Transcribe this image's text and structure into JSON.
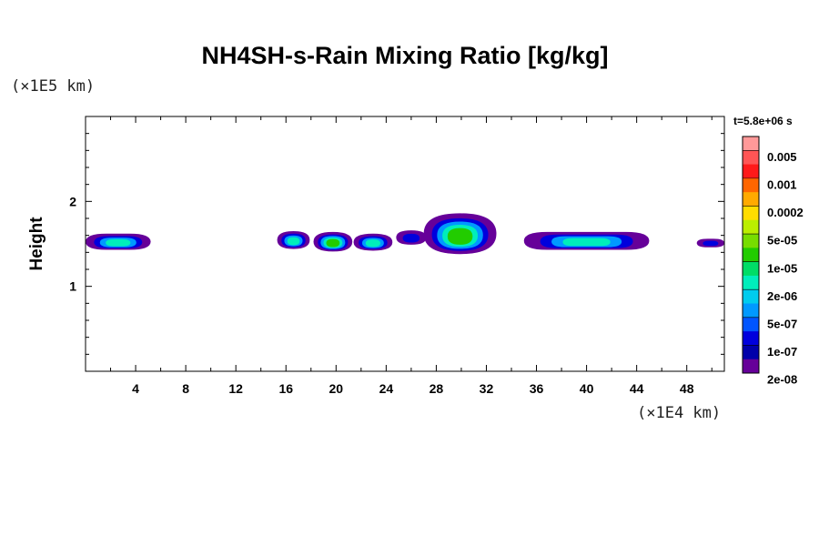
{
  "chart_data": {
    "type": "heatmap",
    "title": "NH4SH-s-Rain Mixing Ratio [kg/kg]",
    "ylabel": "Height",
    "y_unit_label": "(×1E5 km)",
    "x_unit_label": "(×1E4 km)",
    "time_label": "t=5.8e+06 s",
    "xlim": [
      0,
      51
    ],
    "ylim": [
      0,
      3
    ],
    "x_ticks": [
      4,
      8,
      12,
      16,
      20,
      24,
      28,
      32,
      36,
      40,
      44,
      48
    ],
    "y_ticks": [
      1,
      2
    ],
    "x_minor_step": 2,
    "y_minor_step": 0.2,
    "colorbar": {
      "labels": [
        "0.005",
        "0.001",
        "0.0002",
        "5e-05",
        "1e-05",
        "2e-06",
        "5e-07",
        "1e-07",
        "2e-08"
      ],
      "colors": [
        "#ff9999",
        "#ff5555",
        "#ff1a1a",
        "#ff6600",
        "#ffaa00",
        "#ffdd00",
        "#bbee00",
        "#77dd00",
        "#22cc00",
        "#00dd66",
        "#00eebb",
        "#00ccee",
        "#0099ff",
        "#0055ff",
        "#0000dd",
        "#0000aa",
        "#660099"
      ]
    },
    "features": [
      {
        "x0": 0,
        "x1": 5.2,
        "ylo": 1.43,
        "yhi": 1.62,
        "peak": "1e-05"
      },
      {
        "x0": 15.3,
        "x1": 17.9,
        "ylo": 1.44,
        "yhi": 1.65,
        "peak": "1e-05"
      },
      {
        "x0": 18.2,
        "x1": 21.3,
        "ylo": 1.41,
        "yhi": 1.64,
        "peak": "5e-05"
      },
      {
        "x0": 21.4,
        "x1": 24.5,
        "ylo": 1.42,
        "yhi": 1.62,
        "peak": "1e-05"
      },
      {
        "x0": 24.8,
        "x1": 27.2,
        "ylo": 1.49,
        "yhi": 1.66,
        "peak": "5e-07"
      },
      {
        "x0": 27.0,
        "x1": 32.8,
        "ylo": 1.38,
        "yhi": 1.86,
        "peak": "5e-05"
      },
      {
        "x0": 35.0,
        "x1": 45.0,
        "ylo": 1.43,
        "yhi": 1.64,
        "peak": "1e-05"
      },
      {
        "x0": 48.8,
        "x1": 51,
        "ylo": 1.46,
        "yhi": 1.56,
        "peak": "5e-07"
      }
    ]
  }
}
